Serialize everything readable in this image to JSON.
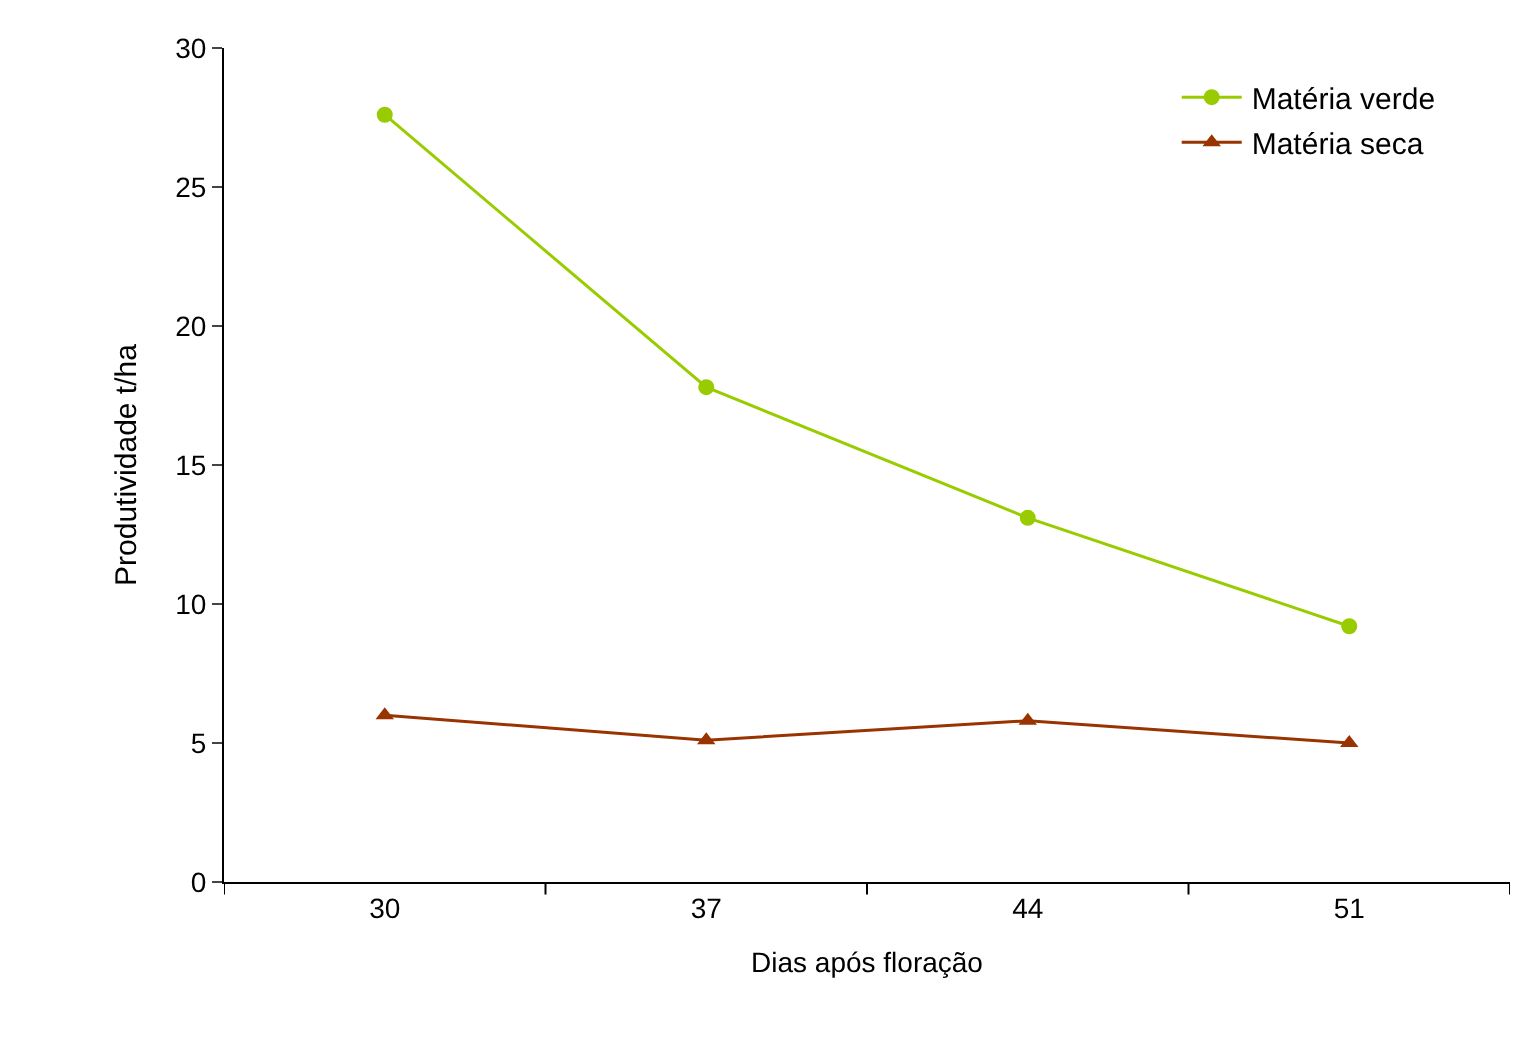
{
  "chart_data": {
    "type": "line",
    "xlabel": "Dias após floração",
    "ylabel": "Produtividade t/ha",
    "categories": [
      "30",
      "37",
      "44",
      "51"
    ],
    "series": [
      {
        "name": "Matéria verde",
        "color": "#99cc00",
        "marker": "circle",
        "values": [
          27.6,
          17.8,
          13.1,
          9.2
        ]
      },
      {
        "name": "Matéria seca",
        "color": "#993300",
        "marker": "triangle",
        "values": [
          6.0,
          5.1,
          5.8,
          5.0
        ]
      }
    ],
    "ylim": [
      0,
      30
    ],
    "yticks": [
      0,
      5,
      10,
      15,
      20,
      25,
      30
    ],
    "legend": "top right"
  }
}
